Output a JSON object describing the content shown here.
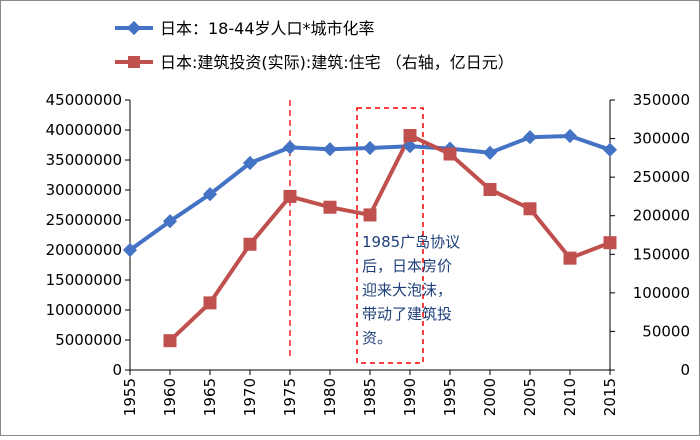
{
  "colors": {
    "series1": "#4472c4",
    "series2": "#c0504d",
    "marker_line": "#ff0000",
    "annotation_text": "#1f3f7a"
  },
  "chart_data": {
    "type": "line",
    "x": [
      1955,
      1960,
      1965,
      1970,
      1975,
      1980,
      1985,
      1990,
      1995,
      2000,
      2005,
      2010,
      2015
    ],
    "series": [
      {
        "name": "日本：18-44岁人口*城市化率",
        "axis": "left",
        "marker": "diamond",
        "values": [
          20000000,
          24800000,
          29300000,
          34500000,
          37100000,
          36800000,
          37000000,
          37300000,
          36900000,
          36200000,
          38800000,
          39000000,
          36700000
        ]
      },
      {
        "name": "日本:建筑投资(实际):建筑:住宅 （右轴，亿日元）",
        "axis": "right",
        "marker": "square",
        "values": [
          null,
          38000,
          87000,
          163000,
          225000,
          211000,
          201000,
          304000,
          280000,
          234000,
          209000,
          145000,
          165000
        ]
      }
    ],
    "y_left": {
      "lim": [
        0,
        45000000
      ],
      "ticks": [
        "0",
        "5000000",
        "10000000",
        "15000000",
        "20000000",
        "25000000",
        "30000000",
        "35000000",
        "40000000",
        "45000000"
      ]
    },
    "y_right": {
      "lim": [
        0,
        350000
      ],
      "ticks": [
        "0",
        "50000",
        "100000",
        "150000",
        "200000",
        "250000",
        "300000",
        "350000"
      ]
    },
    "x_ticks": [
      "1955",
      "1960",
      "1965",
      "1970",
      "1975",
      "1980",
      "1985",
      "1990",
      "1995",
      "2000",
      "2005",
      "2010",
      "2015"
    ],
    "legend_position": "top",
    "grid": false,
    "vline_year": 1975,
    "highlight_range": [
      1985,
      1990
    ],
    "annotation": {
      "lines": [
        "1985广岛协议",
        "后，日本房价",
        "迎来大泡沫，",
        "带动了建筑投",
        "资。"
      ]
    }
  }
}
